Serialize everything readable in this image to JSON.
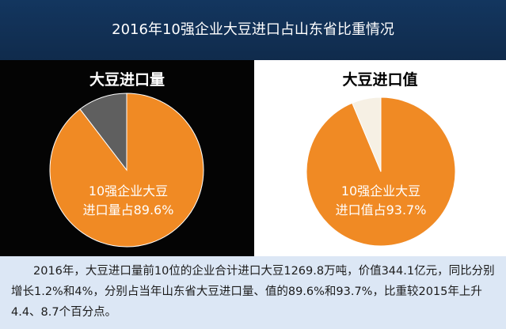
{
  "header": {
    "title": "2016年10强企业大豆进口占山东省比重情况"
  },
  "chart_data": [
    {
      "type": "pie",
      "title": "大豆进口量",
      "values": [
        89.6,
        10.4
      ],
      "colors": [
        "#f08a24",
        "#5f5f5f"
      ],
      "label_lines": [
        "10强企业大豆",
        "进口量占89.6%"
      ]
    },
    {
      "type": "pie",
      "title": "大豆进口值",
      "values": [
        93.7,
        6.3
      ],
      "colors": [
        "#f08a24",
        "#f6f0e4"
      ],
      "label_lines": [
        "10强企业大豆",
        "进口值占93.7%"
      ]
    }
  ],
  "footer": {
    "text": "2016年，大豆进口量前10位的企业合计进口大豆1269.8万吨，价值344.1亿元，同比分别增长1.2%和4%，分别占当年山东省大豆进口量、值的89.6%和93.7%，比重较2015年上升4.4、8.7个百分点。"
  }
}
